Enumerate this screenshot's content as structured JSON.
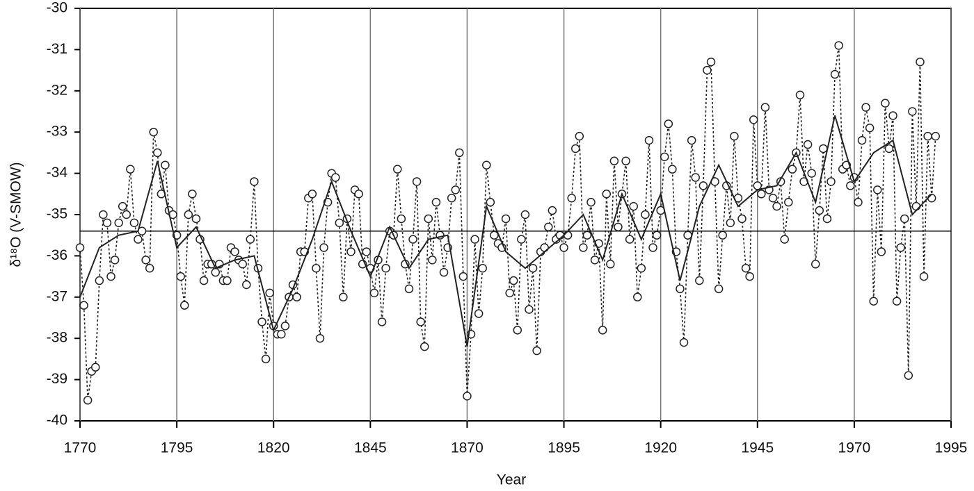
{
  "chart_data": {
    "type": "line",
    "xlabel": "Year",
    "ylabel": "δ¹⁸O (V-SMOW)",
    "xlim": [
      1770,
      1995
    ],
    "xticks": [
      1770,
      1795,
      1820,
      1845,
      1870,
      1895,
      1920,
      1945,
      1970,
      1995
    ],
    "ylim": [
      -40,
      -30
    ],
    "yticks": [
      -40,
      -39,
      -38,
      -37,
      -36,
      -35,
      -34,
      -33,
      -32,
      -31,
      -30
    ],
    "grid": true,
    "reference_line": -35.4,
    "series": [
      {
        "color": "#222222",
        "style": "dotted",
        "marker": "circle",
        "x": [
          1770,
          1771,
          1772,
          1773,
          1774,
          1775,
          1776,
          1777,
          1778,
          1779,
          1780,
          1781,
          1782,
          1783,
          1784,
          1785,
          1786,
          1787,
          1788,
          1789,
          1790,
          1791,
          1792,
          1793,
          1794,
          1795,
          1796,
          1797,
          1798,
          1799,
          1800,
          1801,
          1802,
          1803,
          1804,
          1805,
          1806,
          1807,
          1808,
          1809,
          1810,
          1811,
          1812,
          1813,
          1814,
          1815,
          1816,
          1817,
          1818,
          1819,
          1820,
          1821,
          1822,
          1823,
          1824,
          1825,
          1826,
          1827,
          1828,
          1829,
          1830,
          1831,
          1832,
          1833,
          1834,
          1835,
          1836,
          1837,
          1838,
          1839,
          1840,
          1841,
          1842,
          1843,
          1844,
          1845,
          1846,
          1847,
          1848,
          1849,
          1850,
          1851,
          1852,
          1853,
          1854,
          1855,
          1856,
          1857,
          1858,
          1859,
          1860,
          1861,
          1862,
          1863,
          1864,
          1865,
          1866,
          1867,
          1868,
          1869,
          1870,
          1871,
          1872,
          1873,
          1874,
          1875,
          1876,
          1877,
          1878,
          1879,
          1880,
          1881,
          1882,
          1883,
          1884,
          1885,
          1886,
          1887,
          1888,
          1889,
          1890,
          1891,
          1892,
          1893,
          1894,
          1895,
          1896,
          1897,
          1898,
          1899,
          1900,
          1901,
          1902,
          1903,
          1904,
          1905,
          1906,
          1907,
          1908,
          1909,
          1910,
          1911,
          1912,
          1913,
          1914,
          1915,
          1916,
          1917,
          1918,
          1919,
          1920,
          1921,
          1922,
          1923,
          1924,
          1925,
          1926,
          1927,
          1928,
          1929,
          1930,
          1931,
          1932,
          1933,
          1934,
          1935,
          1936,
          1937,
          1938,
          1939,
          1940,
          1941,
          1942,
          1943,
          1944,
          1945,
          1946,
          1947,
          1948,
          1949,
          1950,
          1951,
          1952,
          1953,
          1954,
          1955,
          1956,
          1957,
          1958,
          1959,
          1960,
          1961,
          1962,
          1963,
          1964,
          1965,
          1966,
          1967,
          1968,
          1969,
          1970,
          1971,
          1972,
          1973,
          1974,
          1975,
          1976,
          1977,
          1978,
          1979,
          1980,
          1981,
          1982,
          1983,
          1984,
          1985,
          1986,
          1987,
          1988,
          1989,
          1990,
          1991
        ],
        "values": [
          -35.8,
          -37.2,
          -39.5,
          -38.8,
          -38.7,
          -36.6,
          -35.0,
          -35.2,
          -36.5,
          -36.1,
          -35.2,
          -34.8,
          -35.0,
          -33.9,
          -35.2,
          -35.6,
          -35.4,
          -36.1,
          -36.3,
          -33.0,
          -33.5,
          -34.5,
          -33.8,
          -34.9,
          -35.0,
          -35.5,
          -36.5,
          -37.2,
          -35.0,
          -34.5,
          -35.1,
          -35.6,
          -36.6,
          -36.2,
          -36.2,
          -36.4,
          -36.2,
          -36.6,
          -36.6,
          -35.8,
          -35.9,
          -36.1,
          -36.2,
          -36.7,
          -35.6,
          -34.2,
          -36.3,
          -37.6,
          -38.5,
          -36.9,
          -37.7,
          -37.9,
          -37.9,
          -37.7,
          -37.0,
          -36.7,
          -37.0,
          -35.9,
          -35.9,
          -34.6,
          -34.5,
          -36.3,
          -38.0,
          -35.8,
          -34.7,
          -34.0,
          -34.1,
          -35.2,
          -37.0,
          -35.1,
          -35.9,
          -34.4,
          -34.5,
          -36.2,
          -35.9,
          -36.3,
          -36.9,
          -36.1,
          -37.6,
          -36.3,
          -35.4,
          -35.5,
          -33.9,
          -35.1,
          -36.2,
          -36.8,
          -35.6,
          -34.2,
          -37.6,
          -38.2,
          -35.1,
          -36.1,
          -34.7,
          -35.5,
          -36.4,
          -35.8,
          -34.6,
          -34.4,
          -33.5,
          -36.5,
          -39.4,
          -37.9,
          -35.6,
          -37.4,
          -36.3,
          -33.8,
          -34.7,
          -35.5,
          -35.7,
          -35.8,
          -35.1,
          -36.9,
          -36.6,
          -37.8,
          -35.6,
          -35.0,
          -37.3,
          -36.3,
          -38.3,
          -35.9,
          -35.8,
          -35.3,
          -34.9,
          -35.6,
          -35.5,
          -35.8,
          -35.5,
          -34.6,
          -33.4,
          -33.1,
          -35.8,
          -35.5,
          -34.7,
          -36.1,
          -35.7,
          -37.8,
          -34.5,
          -36.2,
          -33.7,
          -35.3,
          -34.5,
          -33.7,
          -35.6,
          -34.8,
          -37.0,
          -36.3,
          -35.0,
          -33.2,
          -35.8,
          -35.5,
          -34.9,
          -33.6,
          -32.8,
          -33.9,
          -35.9,
          -36.8,
          -38.1,
          -35.5,
          -33.2,
          -34.1,
          -36.6,
          -34.3,
          -31.5,
          -31.3,
          -34.2,
          -36.8,
          -35.5,
          -34.3,
          -35.2,
          -33.1,
          -34.6,
          -35.1,
          -36.3,
          -36.5,
          -32.7,
          -34.3,
          -34.5,
          -32.4,
          -34.4,
          -34.6,
          -34.8,
          -34.2,
          -35.6,
          -34.7,
          -33.9,
          -33.5,
          -32.1,
          -34.2,
          -33.3,
          -34.0,
          -36.2,
          -34.9,
          -33.4,
          -35.1,
          -34.2,
          -31.6,
          -30.9,
          -33.9,
          -33.8,
          -34.3,
          -34.1,
          -34.7,
          -33.2,
          -32.4,
          -32.9,
          -37.1,
          -34.4,
          -35.9,
          -32.3,
          -33.4,
          -32.6,
          -37.1,
          -35.8,
          -35.1,
          -38.9,
          -32.5,
          -34.8,
          -31.3,
          -36.5,
          -33.1,
          -34.6,
          -33.1
        ]
      },
      {
        "color": "#222222",
        "style": "solid",
        "x": [
          1770,
          1775,
          1780,
          1785,
          1790,
          1795,
          1800,
          1805,
          1810,
          1815,
          1820,
          1825,
          1830,
          1835,
          1840,
          1845,
          1850,
          1855,
          1860,
          1865,
          1870,
          1875,
          1880,
          1885,
          1890,
          1895,
          1900,
          1905,
          1910,
          1915,
          1920,
          1925,
          1930,
          1935,
          1940,
          1945,
          1950,
          1955,
          1960,
          1965,
          1970,
          1975,
          1980,
          1985,
          1990
        ],
        "values": [
          -37.0,
          -35.8,
          -35.5,
          -35.4,
          -33.7,
          -35.8,
          -35.3,
          -36.3,
          -36.1,
          -36.0,
          -37.8,
          -36.8,
          -35.6,
          -34.2,
          -35.4,
          -36.5,
          -35.3,
          -36.3,
          -35.6,
          -35.5,
          -38.2,
          -34.8,
          -35.9,
          -36.3,
          -35.9,
          -35.5,
          -35.0,
          -36.1,
          -34.5,
          -35.6,
          -34.5,
          -36.6,
          -34.8,
          -33.8,
          -34.8,
          -34.4,
          -34.3,
          -33.5,
          -34.7,
          -32.6,
          -34.2,
          -33.5,
          -33.2,
          -35.0,
          -34.5
        ]
      }
    ]
  }
}
